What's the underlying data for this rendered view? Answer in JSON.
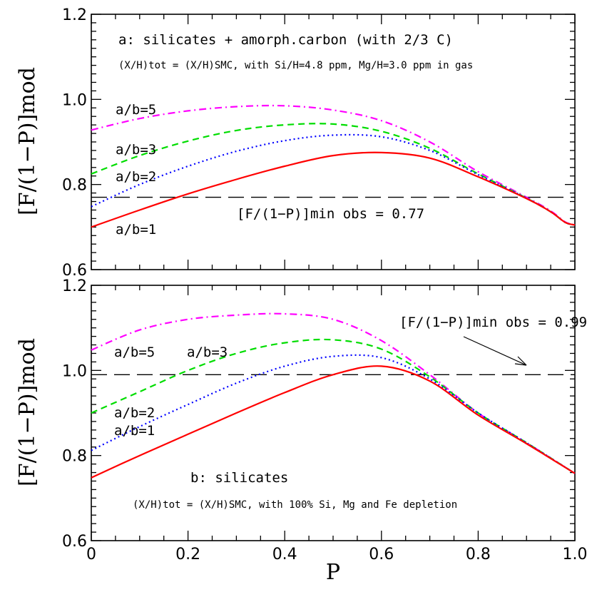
{
  "chart_data": [
    {
      "type": "line",
      "panel": "a",
      "title": "a: silicates + amorph.carbon (with 2/3 C)",
      "subtitle": "(X/H)tot = (X/H)SMC, with Si/H=4.8 ppm, Mg/H=3.0 ppm in gas",
      "ylabel": "[F/(1−P)]mod",
      "xlim": [
        0,
        1
      ],
      "ylim": [
        0.6,
        1.2
      ],
      "yticks": [
        "0.6",
        "0.8",
        "1.0",
        "1.2"
      ],
      "reference_line": {
        "y": 0.77,
        "label": "[F/(1−P)]min obs = 0.77"
      },
      "x": [
        0,
        0.1,
        0.2,
        0.3,
        0.4,
        0.5,
        0.6,
        0.7,
        0.8,
        0.9,
        0.95,
        0.98,
        1.0
      ],
      "series": [
        {
          "name": "a/b=5",
          "color": "#ff00ff",
          "values": [
            0.928,
            0.955,
            0.973,
            0.983,
            0.985,
            0.975,
            0.95,
            0.9,
            0.83,
            0.77,
            0.738,
            0.712,
            0.705
          ]
        },
        {
          "name": "a/b=3",
          "color": "#00dd00",
          "values": [
            0.825,
            0.868,
            0.902,
            0.927,
            0.94,
            0.942,
            0.925,
            0.885,
            0.825,
            0.768,
            0.736,
            0.711,
            0.705
          ]
        },
        {
          "name": "a/b=2",
          "color": "#0000ff",
          "values": [
            0.748,
            0.8,
            0.843,
            0.878,
            0.903,
            0.916,
            0.912,
            0.88,
            0.823,
            0.768,
            0.736,
            0.711,
            0.705
          ]
        },
        {
          "name": "a/b=1",
          "color": "#ff0000",
          "values": [
            0.7,
            0.74,
            0.778,
            0.812,
            0.843,
            0.868,
            0.875,
            0.862,
            0.818,
            0.767,
            0.736,
            0.711,
            0.705
          ]
        }
      ]
    },
    {
      "type": "line",
      "panel": "b",
      "title": "b: silicates",
      "subtitle": "(X/H)tot = (X/H)SMC, with 100% Si, Mg and Fe depletion",
      "xlabel": "P",
      "ylabel": "[F/(1−P)]mod",
      "xlim": [
        0,
        1
      ],
      "ylim": [
        0.6,
        1.2
      ],
      "xticks": [
        "0",
        "0.2",
        "0.4",
        "0.6",
        "0.8",
        "1.0"
      ],
      "yticks": [
        "0.6",
        "0.8",
        "1.0",
        "1.2"
      ],
      "reference_line": {
        "y": 0.99,
        "label": "[F/(1−P)]min obs = 0.99"
      },
      "x": [
        0,
        0.1,
        0.2,
        0.3,
        0.4,
        0.5,
        0.6,
        0.7,
        0.8,
        0.9,
        1.0
      ],
      "series": [
        {
          "name": "a/b=5",
          "color": "#ff00ff",
          "values": [
            1.048,
            1.095,
            1.12,
            1.13,
            1.133,
            1.12,
            1.07,
            0.99,
            0.9,
            0.83,
            0.758
          ]
        },
        {
          "name": "a/b=3",
          "color": "#00dd00",
          "values": [
            0.9,
            0.95,
            1.0,
            1.04,
            1.065,
            1.072,
            1.05,
            0.985,
            0.9,
            0.83,
            0.758
          ]
        },
        {
          "name": "a/b=2",
          "color": "#0000ff",
          "values": [
            0.812,
            0.868,
            0.92,
            0.97,
            1.01,
            1.033,
            1.03,
            0.98,
            0.9,
            0.83,
            0.758
          ]
        },
        {
          "name": "a/b=1",
          "color": "#ff0000",
          "values": [
            0.748,
            0.8,
            0.85,
            0.9,
            0.948,
            0.99,
            1.01,
            0.975,
            0.895,
            0.828,
            0.758
          ]
        }
      ]
    }
  ]
}
